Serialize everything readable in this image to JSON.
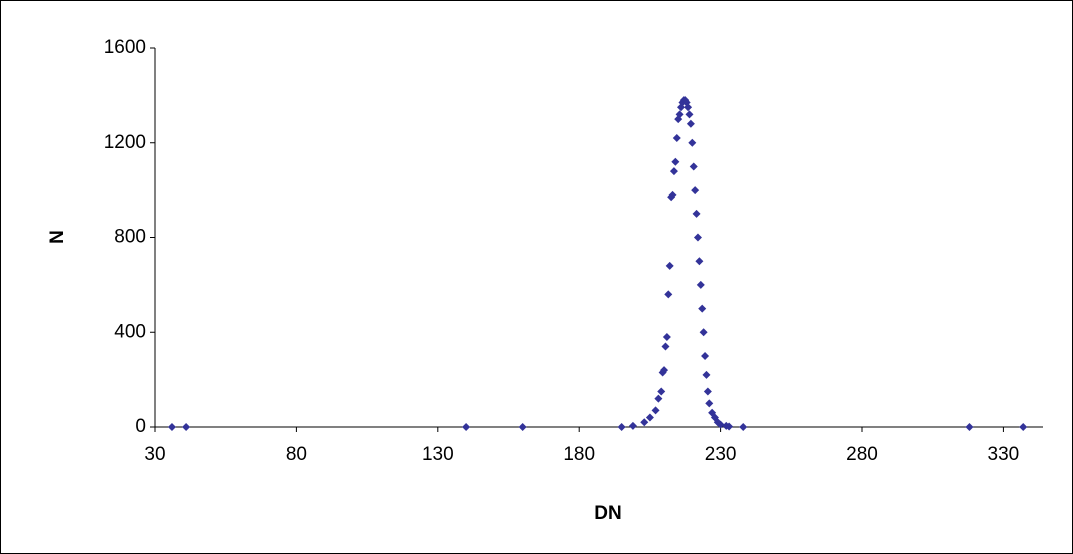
{
  "chart_data": {
    "type": "scatter",
    "x_label": "DN",
    "y_label": "N",
    "color": "#333399",
    "x": [
      36,
      41,
      140,
      160,
      195,
      199,
      203,
      205,
      207,
      208,
      209,
      209.5,
      210,
      210.5,
      211,
      211.5,
      212,
      212.5,
      213,
      213.5,
      214,
      214.5,
      215,
      215.5,
      216,
      216.5,
      217,
      217.5,
      218,
      218.5,
      219,
      219.5,
      220,
      220.5,
      221,
      221.5,
      222,
      222.5,
      223,
      223.5,
      224,
      224.5,
      225,
      225.5,
      226,
      227,
      228,
      229,
      230,
      232,
      233,
      238,
      318,
      337
    ],
    "values": [
      0,
      0,
      0,
      0,
      0,
      5,
      20,
      40,
      70,
      120,
      150,
      230,
      240,
      340,
      380,
      560,
      680,
      970,
      980,
      1080,
      1120,
      1220,
      1300,
      1320,
      1350,
      1370,
      1380,
      1380,
      1370,
      1350,
      1320,
      1280,
      1200,
      1100,
      1000,
      900,
      800,
      700,
      600,
      500,
      400,
      300,
      220,
      150,
      100,
      60,
      40,
      20,
      10,
      5,
      2,
      0,
      0,
      0
    ],
    "xlim": [
      30,
      344
    ],
    "xticks": [
      30,
      80,
      130,
      180,
      230,
      280,
      330
    ],
    "ylim": [
      0,
      1600
    ],
    "yticks": [
      0,
      400,
      800,
      1200,
      1600
    ]
  }
}
